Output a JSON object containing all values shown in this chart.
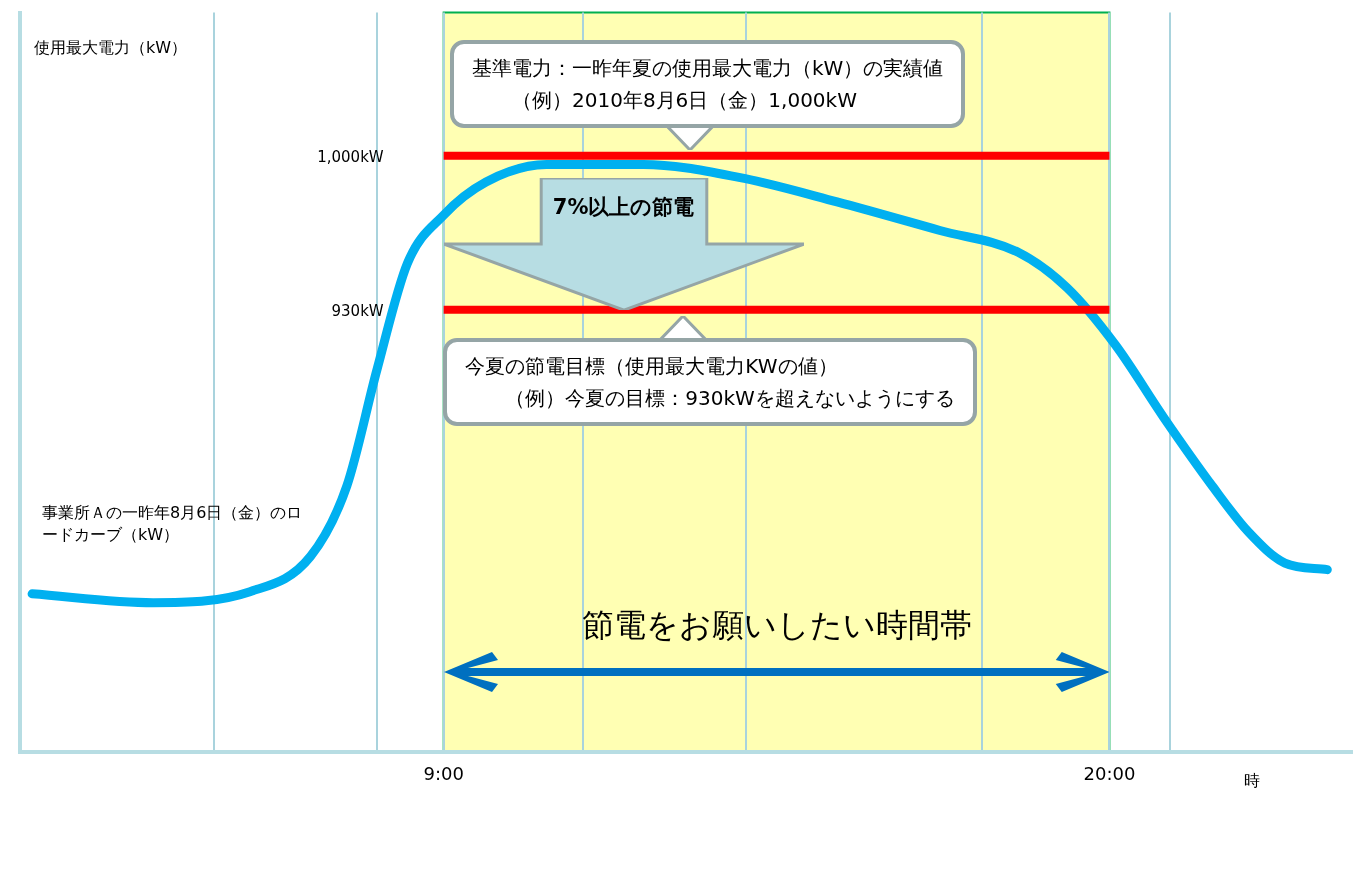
{
  "chart_data": {
    "type": "line",
    "xlabel": "時",
    "ylabel": "使用最大電力（kW）",
    "xlim": [
      2,
      24
    ],
    "ylim": [
      729,
      1065
    ],
    "xticks": [
      {
        "value": 5.2,
        "label": null
      },
      {
        "value": 7.9,
        "label": null
      },
      {
        "value": 9,
        "label": "9:00"
      },
      {
        "value": 11.3,
        "label": null
      },
      {
        "value": 14,
        "label": null
      },
      {
        "value": 17.9,
        "label": null
      },
      {
        "value": 20,
        "label": "20:00"
      },
      {
        "value": 21,
        "label": null
      }
    ],
    "yticks": [
      {
        "value": 930,
        "label": "930kW"
      },
      {
        "value": 1000,
        "label": "1,000kW"
      }
    ],
    "grid": "x",
    "legend": false,
    "marker": "none",
    "line_style": "solid",
    "series": [
      {
        "name": "事業所Ａの一昨年8月6日（金）のロードカーブ（kW）",
        "color": "#00b0f0",
        "x": [
          2.2,
          4.2,
          5.8,
          6.8,
          7.4,
          7.9,
          8.4,
          9,
          9.7,
          10.7,
          12.3,
          13.9,
          15.5,
          17.2,
          18.5,
          19.3,
          20.1,
          20.9,
          21.7,
          22.3,
          22.9,
          23.6
        ],
        "values": [
          801,
          797,
          802,
          818,
          850,
          903,
          951,
          973,
          988,
          996,
          996,
          990,
          979,
          966,
          956,
          940,
          914,
          881,
          850,
          829,
          815,
          812
        ]
      }
    ],
    "ref_lines": [
      {
        "axis": "y",
        "value": 1000,
        "color": "#ff0000"
      },
      {
        "axis": "y",
        "value": 930,
        "color": "#ff0000"
      }
    ],
    "bands": [
      {
        "axis": "x",
        "from": 9,
        "to": 20,
        "label": "節電をお願いしたい時間帯",
        "color": "#ffffb3"
      }
    ],
    "annotations": [
      "基準電力：一昨年夏の使用最大電力（kW）の実績値",
      "（例）2010年8月6日（金）1,000kW",
      "今夏の節電目標（使用最大電力KWの値）",
      "（例）今夏の目標：930kWを超えないようにする",
      "7%以上の節電"
    ]
  }
}
